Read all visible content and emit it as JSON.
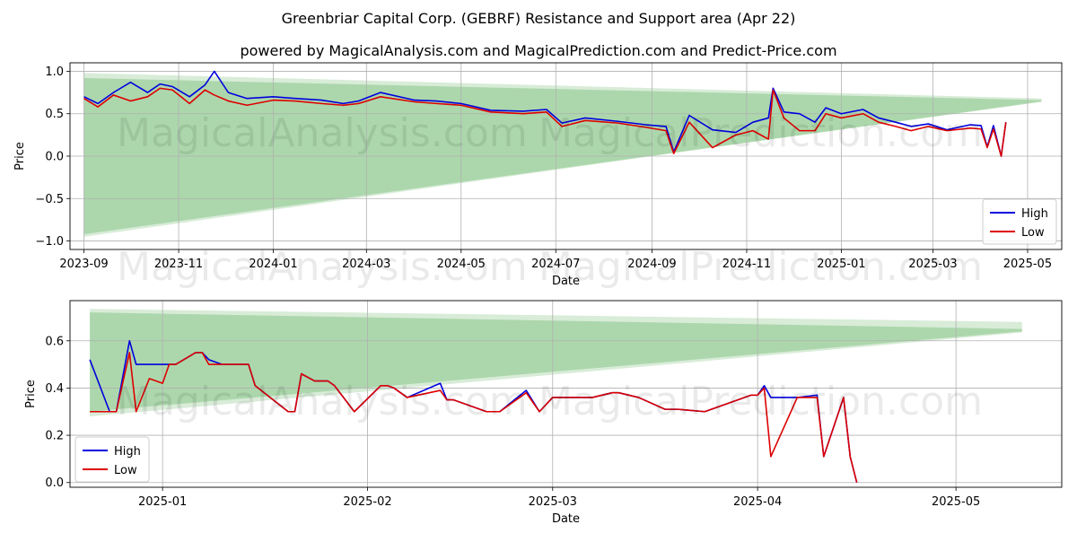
{
  "title": "Greenbriar Capital Corp. (GEBRF) Resistance and Support area (Apr 22)",
  "subtitle": "powered by MagicalAnalysis.com and MagicalPrediction.com and Predict-Price.com",
  "watermarks": [
    "MagicalAnalysis.com",
    "MagicalPrediction.com"
  ],
  "colors": {
    "high": "#0000dd",
    "low": "#dd0000",
    "band": "#90c990"
  },
  "chart_data": [
    {
      "type": "line",
      "xlabel": "Date",
      "ylabel": "Price",
      "x_range": [
        "2023-08-23",
        "2025-05-23"
      ],
      "ylim": [
        -1.1,
        1.1
      ],
      "x_ticks": [
        {
          "date": "2023-09-01",
          "label": "2023-09"
        },
        {
          "date": "2023-11-01",
          "label": "2023-11"
        },
        {
          "date": "2024-01-01",
          "label": "2024-01"
        },
        {
          "date": "2024-03-01",
          "label": "2024-03"
        },
        {
          "date": "2024-05-01",
          "label": "2024-05"
        },
        {
          "date": "2024-07-01",
          "label": "2024-07"
        },
        {
          "date": "2024-09-01",
          "label": "2024-09"
        },
        {
          "date": "2024-11-01",
          "label": "2024-11"
        },
        {
          "date": "2025-01-01",
          "label": "2025-01"
        },
        {
          "date": "2025-03-01",
          "label": "2025-03"
        },
        {
          "date": "2025-05-01",
          "label": "2025-05"
        }
      ],
      "y_ticks": [
        {
          "value": 1.0,
          "label": "1.0"
        },
        {
          "value": 0.5,
          "label": "0.5"
        },
        {
          "value": 0.0,
          "label": "0.0"
        },
        {
          "value": -0.5,
          "label": "−0.5"
        },
        {
          "value": -1.0,
          "label": "−1.0"
        }
      ],
      "grid": true,
      "legend": "bottom-right",
      "bands": [
        {
          "x": [
            "2023-09-01",
            "2025-05-10"
          ],
          "upper": [
            0.98,
            0.68
          ],
          "lower": [
            -0.95,
            0.65
          ],
          "opacity": 0.35
        },
        {
          "x": [
            "2023-09-01",
            "2025-05-10"
          ],
          "upper": [
            0.92,
            0.66
          ],
          "lower": [
            -0.92,
            0.64
          ],
          "opacity": 0.6
        }
      ],
      "series": [
        {
          "name": "High",
          "x": [
            "2023-09-01",
            "2023-09-10",
            "2023-09-20",
            "2023-10-01",
            "2023-10-12",
            "2023-10-20",
            "2023-10-28",
            "2023-11-08",
            "2023-11-18",
            "2023-11-24",
            "2023-12-03",
            "2023-12-15",
            "2024-01-01",
            "2024-01-15",
            "2024-02-01",
            "2024-02-15",
            "2024-02-25",
            "2024-03-10",
            "2024-04-01",
            "2024-04-15",
            "2024-05-01",
            "2024-05-20",
            "2024-06-10",
            "2024-06-25",
            "2024-07-05",
            "2024-07-20",
            "2024-08-10",
            "2024-08-28",
            "2024-09-10",
            "2024-09-15",
            "2024-09-25",
            "2024-10-10",
            "2024-10-25",
            "2024-11-05",
            "2024-11-15",
            "2024-11-18",
            "2024-11-25",
            "2024-12-05",
            "2024-12-15",
            "2024-12-22",
            "2025-01-01",
            "2025-01-15",
            "2025-01-25",
            "2025-02-05",
            "2025-02-15",
            "2025-02-26",
            "2025-03-10",
            "2025-03-25",
            "2025-04-01",
            "2025-04-05",
            "2025-04-09",
            "2025-04-14",
            "2025-04-17"
          ],
          "values": [
            0.7,
            0.62,
            0.75,
            0.87,
            0.75,
            0.85,
            0.82,
            0.7,
            0.84,
            1.0,
            0.75,
            0.68,
            0.7,
            0.68,
            0.66,
            0.62,
            0.65,
            0.75,
            0.66,
            0.65,
            0.62,
            0.54,
            0.53,
            0.55,
            0.39,
            0.45,
            0.41,
            0.37,
            0.35,
            0.05,
            0.48,
            0.31,
            0.28,
            0.4,
            0.45,
            0.8,
            0.52,
            0.5,
            0.4,
            0.57,
            0.5,
            0.55,
            0.45,
            0.4,
            0.35,
            0.38,
            0.31,
            0.37,
            0.36,
            0.11,
            0.36,
            0.0,
            0.4
          ]
        },
        {
          "name": "Low",
          "x": [
            "2023-09-01",
            "2023-09-10",
            "2023-09-20",
            "2023-10-01",
            "2023-10-12",
            "2023-10-20",
            "2023-10-28",
            "2023-11-08",
            "2023-11-18",
            "2023-11-24",
            "2023-12-03",
            "2023-12-15",
            "2024-01-01",
            "2024-01-15",
            "2024-02-01",
            "2024-02-15",
            "2024-02-25",
            "2024-03-10",
            "2024-04-01",
            "2024-04-15",
            "2024-05-01",
            "2024-05-20",
            "2024-06-10",
            "2024-06-25",
            "2024-07-05",
            "2024-07-20",
            "2024-08-10",
            "2024-08-28",
            "2024-09-10",
            "2024-09-15",
            "2024-09-25",
            "2024-10-10",
            "2024-10-25",
            "2024-11-05",
            "2024-11-15",
            "2024-11-18",
            "2024-11-25",
            "2024-12-05",
            "2024-12-15",
            "2024-12-22",
            "2025-01-01",
            "2025-01-15",
            "2025-01-25",
            "2025-02-05",
            "2025-02-15",
            "2025-02-26",
            "2025-03-10",
            "2025-03-25",
            "2025-04-01",
            "2025-04-05",
            "2025-04-09",
            "2025-04-14",
            "2025-04-17"
          ],
          "values": [
            0.68,
            0.58,
            0.72,
            0.65,
            0.7,
            0.8,
            0.78,
            0.62,
            0.78,
            0.72,
            0.65,
            0.6,
            0.66,
            0.65,
            0.62,
            0.6,
            0.62,
            0.7,
            0.64,
            0.62,
            0.6,
            0.52,
            0.5,
            0.52,
            0.35,
            0.42,
            0.39,
            0.34,
            0.3,
            0.03,
            0.4,
            0.1,
            0.25,
            0.3,
            0.2,
            0.78,
            0.45,
            0.3,
            0.3,
            0.5,
            0.45,
            0.5,
            0.4,
            0.35,
            0.3,
            0.35,
            0.3,
            0.33,
            0.32,
            0.1,
            0.32,
            0.0,
            0.4
          ]
        }
      ]
    },
    {
      "type": "line",
      "xlabel": "Date",
      "ylabel": "Price",
      "x_range": [
        "2024-12-18",
        "2025-05-17"
      ],
      "ylim": [
        -0.02,
        0.77
      ],
      "x_ticks": [
        {
          "date": "2025-01-01",
          "label": "2025-01"
        },
        {
          "date": "2025-02-01",
          "label": "2025-02"
        },
        {
          "date": "2025-03-01",
          "label": "2025-03"
        },
        {
          "date": "2025-04-01",
          "label": "2025-04"
        },
        {
          "date": "2025-05-01",
          "label": "2025-05"
        }
      ],
      "y_ticks": [
        {
          "value": 0.0,
          "label": "0.0"
        },
        {
          "value": 0.2,
          "label": "0.2"
        },
        {
          "value": 0.4,
          "label": "0.4"
        },
        {
          "value": 0.6,
          "label": "0.6"
        }
      ],
      "grid": true,
      "legend": "bottom-left",
      "bands": [
        {
          "x": [
            "2024-12-21",
            "2025-05-11"
          ],
          "upper": [
            0.735,
            0.68
          ],
          "lower": [
            0.28,
            0.635
          ],
          "opacity": 0.35
        },
        {
          "x": [
            "2024-12-21",
            "2025-05-11"
          ],
          "upper": [
            0.72,
            0.65
          ],
          "lower": [
            0.3,
            0.64
          ],
          "opacity": 0.6
        }
      ],
      "series": [
        {
          "name": "High",
          "x": [
            "2024-12-21",
            "2024-12-24",
            "2024-12-25",
            "2024-12-27",
            "2024-12-28",
            "2024-12-30",
            "2025-01-01",
            "2025-01-02",
            "2025-01-03",
            "2025-01-06",
            "2025-01-07",
            "2025-01-08",
            "2025-01-10",
            "2025-01-13",
            "2025-01-14",
            "2025-01-15",
            "2025-01-20",
            "2025-01-21",
            "2025-01-22",
            "2025-01-24",
            "2025-01-26",
            "2025-01-27",
            "2025-01-30",
            "2025-02-03",
            "2025-02-04",
            "2025-02-05",
            "2025-02-07",
            "2025-02-12",
            "2025-02-13",
            "2025-02-14",
            "2025-02-19",
            "2025-02-21",
            "2025-02-25",
            "2025-02-27",
            "2025-03-01",
            "2025-03-05",
            "2025-03-07",
            "2025-03-10",
            "2025-03-11",
            "2025-03-14",
            "2025-03-18",
            "2025-03-20",
            "2025-03-24",
            "2025-03-31",
            "2025-04-01",
            "2025-04-02",
            "2025-04-03",
            "2025-04-07",
            "2025-04-10",
            "2025-04-11",
            "2025-04-14",
            "2025-04-15",
            "2025-04-16"
          ],
          "values": [
            0.52,
            0.3,
            0.3,
            0.6,
            0.5,
            0.5,
            0.5,
            0.5,
            0.5,
            0.55,
            0.55,
            0.52,
            0.5,
            0.5,
            0.5,
            0.41,
            0.3,
            0.3,
            0.46,
            0.43,
            0.43,
            0.41,
            0.3,
            0.41,
            0.41,
            0.4,
            0.36,
            0.42,
            0.35,
            0.35,
            0.3,
            0.3,
            0.39,
            0.3,
            0.36,
            0.36,
            0.36,
            0.38,
            0.38,
            0.36,
            0.31,
            0.31,
            0.3,
            0.37,
            0.37,
            0.41,
            0.36,
            0.36,
            0.37,
            0.11,
            0.36,
            0.11,
            0.0
          ]
        },
        {
          "name": "Low",
          "x": [
            "2024-12-21",
            "2024-12-24",
            "2024-12-25",
            "2024-12-27",
            "2024-12-28",
            "2024-12-30",
            "2025-01-01",
            "2025-01-02",
            "2025-01-03",
            "2025-01-06",
            "2025-01-07",
            "2025-01-08",
            "2025-01-10",
            "2025-01-13",
            "2025-01-14",
            "2025-01-15",
            "2025-01-20",
            "2025-01-21",
            "2025-01-22",
            "2025-01-24",
            "2025-01-26",
            "2025-01-27",
            "2025-01-30",
            "2025-02-03",
            "2025-02-04",
            "2025-02-05",
            "2025-02-07",
            "2025-02-12",
            "2025-02-13",
            "2025-02-14",
            "2025-02-19",
            "2025-02-21",
            "2025-02-25",
            "2025-02-27",
            "2025-03-01",
            "2025-03-05",
            "2025-03-07",
            "2025-03-10",
            "2025-03-11",
            "2025-03-14",
            "2025-03-18",
            "2025-03-20",
            "2025-03-24",
            "2025-03-31",
            "2025-04-01",
            "2025-04-02",
            "2025-04-03",
            "2025-04-07",
            "2025-04-10",
            "2025-04-11",
            "2025-04-14",
            "2025-04-15",
            "2025-04-16"
          ],
          "values": [
            0.3,
            0.3,
            0.3,
            0.55,
            0.3,
            0.44,
            0.42,
            0.5,
            0.5,
            0.55,
            0.55,
            0.5,
            0.5,
            0.5,
            0.5,
            0.41,
            0.3,
            0.3,
            0.46,
            0.43,
            0.43,
            0.41,
            0.3,
            0.41,
            0.41,
            0.4,
            0.36,
            0.39,
            0.35,
            0.35,
            0.3,
            0.3,
            0.38,
            0.3,
            0.36,
            0.36,
            0.36,
            0.38,
            0.38,
            0.36,
            0.31,
            0.31,
            0.3,
            0.37,
            0.37,
            0.4,
            0.11,
            0.36,
            0.36,
            0.11,
            0.36,
            0.11,
            0.0
          ]
        }
      ]
    }
  ]
}
